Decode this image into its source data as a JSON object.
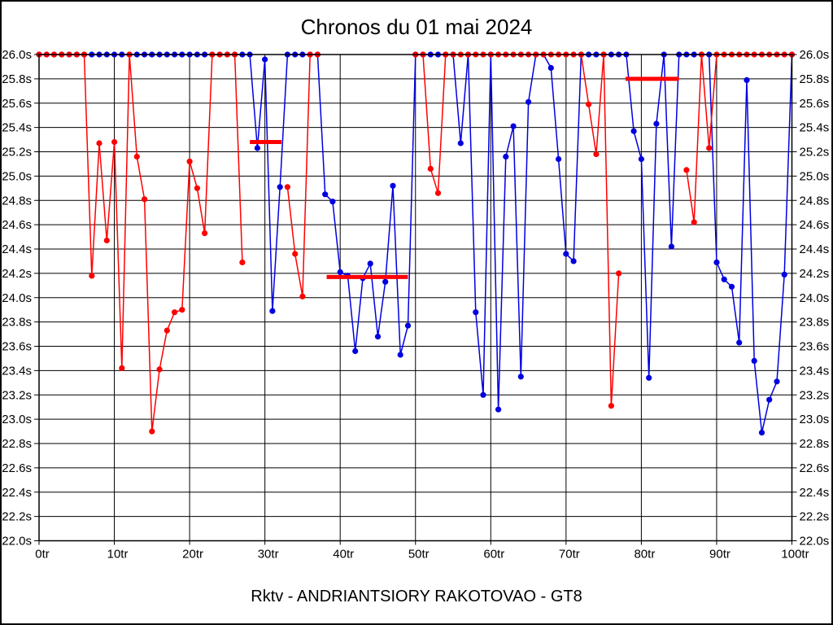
{
  "page": {
    "title": "Chronos du 01 mai 2024",
    "caption": "Rktv - ANDRIANTSIORY RAKOTOVAO - GT8"
  },
  "chart_data": {
    "type": "line",
    "title": "Chronos du 01 mai 2024",
    "subtitle": "Rktv - ANDRIANTSIORY RAKOTOVAO - GT8",
    "x_unit": "tr",
    "y_unit": "s",
    "xlim": [
      0,
      100
    ],
    "ylim": [
      22.0,
      26.0
    ],
    "x_tick_step": 10,
    "y_tick_step": 0.2,
    "grid": true,
    "legend": "none",
    "cap_value": 26.0,
    "x_ticks": [
      "0tr",
      "10tr",
      "20tr",
      "30tr",
      "40tr",
      "50tr",
      "60tr",
      "70tr",
      "80tr",
      "90tr",
      "100tr"
    ],
    "y_ticks": [
      "26.0s",
      "25.8s",
      "25.6s",
      "25.4s",
      "25.2s",
      "25.0s",
      "24.8s",
      "24.6s",
      "24.4s",
      "24.2s",
      "24.0s",
      "23.8s",
      "23.6s",
      "23.4s",
      "23.2s",
      "23.0s",
      "22.8s",
      "22.6s",
      "22.4s",
      "22.2s",
      "22.0s"
    ],
    "series": [
      {
        "name": "blue-driver",
        "color": "#0000e0",
        "x_start": 0,
        "values": [
          26,
          26,
          26,
          26,
          26,
          26,
          26,
          26,
          26,
          26,
          26,
          26,
          26,
          26,
          26,
          26,
          26,
          26,
          26,
          26,
          26,
          26,
          26,
          26,
          26,
          26,
          26,
          26,
          26,
          25.23,
          25.96,
          23.89,
          24.91,
          26,
          26,
          26,
          26,
          26,
          24.85,
          24.79,
          24.21,
          24.18,
          23.56,
          24.16,
          24.28,
          23.68,
          24.13,
          24.92,
          23.53,
          23.77,
          26,
          26,
          26,
          26,
          26,
          26,
          25.27,
          26,
          23.88,
          23.2,
          26,
          23.08,
          25.16,
          25.41,
          23.35,
          25.61,
          26,
          26,
          25.89,
          25.14,
          24.36,
          24.3,
          26,
          26,
          26,
          26,
          26,
          26,
          26,
          25.37,
          25.14,
          23.34,
          25.43,
          26,
          24.42,
          26,
          26,
          26,
          26,
          26,
          24.29,
          24.15,
          24.09,
          23.63,
          25.79,
          23.48,
          22.89,
          23.16,
          23.31,
          24.19,
          26
        ]
      },
      {
        "name": "red-driver",
        "color": "#ff0000",
        "x_start": 0,
        "values": [
          26,
          26,
          26,
          26,
          26,
          26,
          26,
          24.18,
          25.27,
          24.47,
          25.28,
          23.42,
          26,
          25.16,
          24.81,
          22.9,
          23.41,
          23.73,
          23.88,
          23.9,
          25.12,
          24.9,
          24.53,
          26,
          26,
          26,
          26,
          24.29,
          null,
          null,
          null,
          null,
          null,
          24.91,
          24.36,
          24.01,
          26,
          26,
          null,
          null,
          null,
          null,
          null,
          null,
          null,
          null,
          null,
          null,
          null,
          null,
          26,
          26,
          25.06,
          24.86,
          26,
          26,
          26,
          26,
          26,
          26,
          26,
          26,
          26,
          26,
          26,
          26,
          26,
          26,
          26,
          26,
          26,
          26,
          26,
          25.59,
          25.18,
          26,
          23.11,
          24.2,
          null,
          null,
          null,
          null,
          null,
          null,
          null,
          null,
          25.05,
          24.62,
          26,
          25.23,
          26,
          26,
          26,
          26,
          26,
          26,
          26,
          26,
          26,
          26,
          26
        ]
      }
    ],
    "reference_bars": [
      {
        "name": "red-average-bar-1",
        "color": "#ff0000",
        "x_from": 28,
        "x_to": 32.2,
        "value": 25.28
      },
      {
        "name": "red-average-bar-2",
        "color": "#ff0000",
        "x_from": 38.2,
        "x_to": 49.0,
        "value": 24.17
      },
      {
        "name": "red-average-bar-3",
        "color": "#ff0000",
        "x_from": 77.9,
        "x_to": 85.0,
        "value": 25.8
      }
    ]
  }
}
